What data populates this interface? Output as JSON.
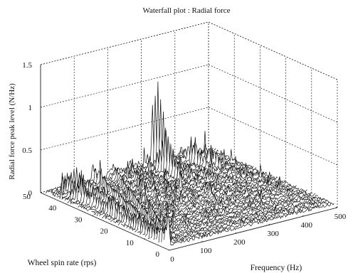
{
  "chart_data": {
    "type": "waterfall",
    "title": "Waterfall plot : Radial force",
    "xlabel": "Frequency (Hz)",
    "ylabel": "Wheel spin rate (rps)",
    "zlabel": "Radial force peak level (N/Hz)",
    "xlim": [
      0,
      500
    ],
    "ylim": [
      0,
      50
    ],
    "zlim": [
      0,
      1.5
    ],
    "x_ticks": [
      "0",
      "100",
      "200",
      "300",
      "400",
      "500"
    ],
    "y_ticks": [
      "0",
      "10",
      "20",
      "30",
      "40",
      "50"
    ],
    "z_ticks": [
      "0",
      "0.5",
      "1",
      "1.5"
    ],
    "grid": true,
    "series_note": "spectra traces stacked along wheel spin rate",
    "peaks": [
      {
        "frequency": 30,
        "spin_rate": 38,
        "level": 0.25
      },
      {
        "frequency": 60,
        "spin_rate": 44,
        "level": 0.28
      },
      {
        "frequency": 140,
        "spin_rate": 48,
        "level": 0.2
      },
      {
        "frequency": 300,
        "spin_rate": 40,
        "level": 0.5
      },
      {
        "frequency": 318,
        "spin_rate": 46,
        "level": 0.95
      },
      {
        "frequency": 340,
        "spin_rate": 48,
        "level": 0.35
      },
      {
        "frequency": 400,
        "spin_rate": 42,
        "level": 0.3
      },
      {
        "frequency": 430,
        "spin_rate": 40,
        "level": 0.25
      }
    ]
  }
}
